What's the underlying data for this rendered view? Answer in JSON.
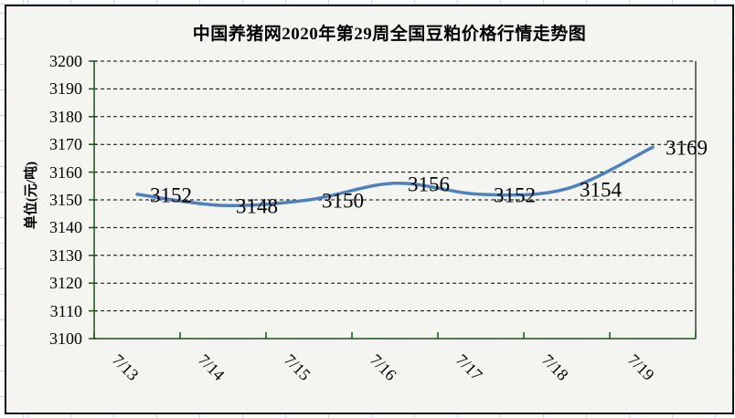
{
  "chart_data": {
    "type": "line",
    "title": "中国养猪网2020年第29周全国豆粕价格行情走势图",
    "ylabel": "单位(元/吨)",
    "xlabel": "",
    "categories": [
      "7/13",
      "7/14",
      "7/15",
      "7/16",
      "7/17",
      "7/18",
      "7/19"
    ],
    "values": [
      3152,
      3148,
      3150,
      3156,
      3152,
      3154,
      3169
    ],
    "data_labels": [
      "3152",
      "3148",
      "3150",
      "3156",
      "3152",
      "3154",
      "3169"
    ],
    "ylim": [
      3100,
      3200
    ],
    "ytick_interval": 10,
    "yticks": [
      "3200",
      "3190",
      "3180",
      "3170",
      "3160",
      "3150",
      "3140",
      "3130",
      "3120",
      "3110",
      "3100"
    ],
    "grid": "horizontal-dashed",
    "legend_position": "none",
    "smoothed_line": true,
    "colors": {
      "line": "#4f81bd",
      "axis": "#1c4f1c",
      "gridline": "#000000",
      "plot_right_border": "#222222",
      "chart_background": "#f4f5f1",
      "chart_border": "#111111",
      "spreadsheet_gridline": "#ccd5e3",
      "text": "#000000"
    }
  }
}
